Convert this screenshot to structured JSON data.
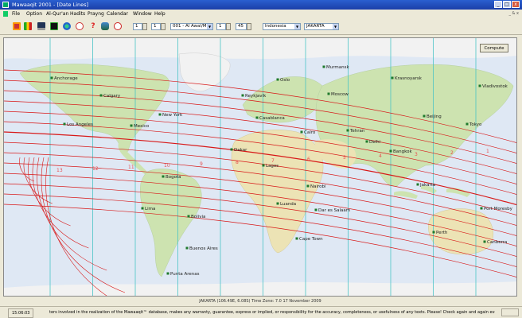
{
  "window": {
    "title": "Mawaaqit 2001 - [Date Lines]",
    "minimize_glyph": "_",
    "maximize_glyph": "□",
    "close_glyph": "x"
  },
  "menu": [
    "File",
    "Option",
    "Al-Qur'an",
    "Hadits",
    "Prayng",
    "Calendar",
    "Window",
    "Help"
  ],
  "mdi_controls": "_ & x",
  "toolbar": {
    "icons": [
      "books-icon",
      "chart-icon",
      "mosque-icon",
      "globe-icon",
      "clock-icon",
      "help-icon",
      "people-icon",
      "stop-icon"
    ],
    "day": "1",
    "month": "1",
    "month_name": "001 - Al Awal/Muh",
    "hour": "1",
    "year": "45",
    "country": "Indonesia",
    "city": "JAKARTA"
  },
  "map": {
    "compute_label": "Compute",
    "cities": [
      "Anchorage",
      "Calgary",
      "Los Angeles",
      "Mexico",
      "New York",
      "Bogota",
      "Lima",
      "Bolivia",
      "Buenos Aires",
      "Punta Arenas",
      "Reykjavik",
      "Oslo",
      "Murmansk",
      "Moscow",
      "Casablanca",
      "Cairo",
      "Dakar",
      "Lagos",
      "Nairobi",
      "Luanda",
      "Cape Town",
      "Dar es Salaam",
      "Tehran",
      "Delhi",
      "Krasnoyarsk",
      "Vladivostok",
      "Beijing",
      "Tokyo",
      "Jakarta",
      "Perth",
      "Canberra",
      "Port Moresby",
      "Bangkok"
    ],
    "zone_labels": [
      "13",
      "12",
      "11",
      "10",
      "9",
      "8",
      "7",
      "6",
      "5",
      "4",
      "3",
      "2",
      "1"
    ],
    "colors": {
      "water": "#dfe8f4",
      "land": "#cde3b0",
      "desert": "#ece3b5",
      "ice": "#f2f2f2",
      "meridian": "#49c3c6",
      "date_line": "#d81818"
    }
  },
  "info_line": "JAKARTA (106.49E, 6.08S)    Time Zone: 7.0    17 November 2009",
  "status": {
    "time": "15:06:03",
    "message": "ters involved in the realization of the Mawaaqit™ database, makes any warranty, guarantee, express or implied, or responsibility for the accuracy, completeness, or usefulness of any texts. Please! Check again and again every text you will read"
  }
}
